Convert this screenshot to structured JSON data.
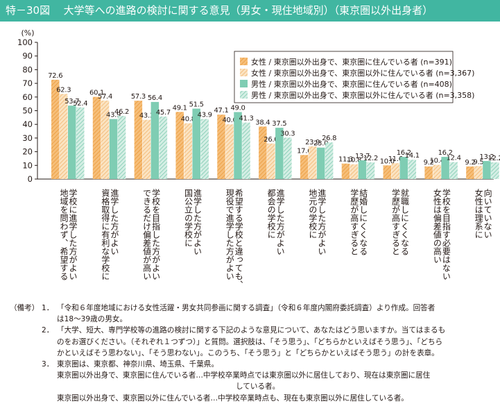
{
  "figure": {
    "number": "特－30図",
    "title": "大学等への進路の検討に関する意見（男女・現住地域別）（東京圏以外出身者）"
  },
  "chart_data": {
    "type": "bar",
    "ylabel": "(%)",
    "ylim": [
      0,
      100
    ],
    "yticks": [
      0,
      10,
      20,
      30,
      40,
      50,
      60,
      70,
      80,
      90,
      100
    ],
    "grid": false,
    "legend_position": "top-right",
    "categories": [
      "学校に進学した方がよい地域を問わず、希望する",
      "進学した方がよい資格取得に有利な学校に",
      "学校を目指した方がよいできるだけ偏差値が高い",
      "進学した方がよい国公立の学校に",
      "希望する学校と違っても、現役で進学した方がよい",
      "進学した方がよい都会の学校に",
      "進学した方がよい地元の学校に",
      "結婚しにくくなる学歴が高すぎると",
      "就職しにくくなる学歴が高すぎると",
      "学校を目指す必要はない女性は偏差値の高い",
      "向いていない女性は理系に"
    ],
    "category_lines": [
      [
        "学校に進学した方がよい",
        "地域を問わず、希望する"
      ],
      [
        "進学した方がよい",
        "資格取得に有利な学校に"
      ],
      [
        "学校を目指した方がよい",
        "できるだけ偏差値が高い"
      ],
      [
        "進学した方がよい",
        "国公立の学校に"
      ],
      [
        "希望する学校と違っても、",
        "現役で進学した方がよい"
      ],
      [
        "進学した方がよい",
        "都会の学校に"
      ],
      [
        "進学した方がよい",
        "地元の学校に"
      ],
      [
        "結婚しにくくなる",
        "学歴が高すぎると"
      ],
      [
        "就職しにくくなる",
        "学歴が高すぎると"
      ],
      [
        "学校を目指す必要はない",
        "女性は偏差値の高い"
      ],
      [
        "向いていない",
        "女性は理系に"
      ]
    ],
    "series": [
      {
        "name": "女性 / 東京圏以外出身で、東京圏に住んでいる者 (n=391)",
        "color": "#f6be79",
        "hatch": "#e8932e",
        "values": [
          72.6,
          60.1,
          57.3,
          49.1,
          47.1,
          38.4,
          17.6,
          11.3,
          10.0,
          9.2,
          9.2
        ]
      },
      {
        "name": "女性 / 東京圏以外出身で、東京圏以外に住んでいる者 (n=3,367)",
        "color": "#fbe3c1",
        "hatch": "#f0ac5e",
        "values": [
          62.3,
          57.4,
          43.3,
          40.8,
          40.0,
          26.0,
          23.9,
          10.8,
          11.6,
          10.4,
          9.5
        ]
      },
      {
        "name": "男性 / 東京圏以外出身で、東京圏に住んでいる者 (n=408)",
        "color": "#7fcdb3",
        "hatch": null,
        "values": [
          53.7,
          43.9,
          56.4,
          51.5,
          49.0,
          37.5,
          23.0,
          13.7,
          16.2,
          16.2,
          13.2
        ]
      },
      {
        "name": "男性 / 東京圏以外出身で、東京圏以外に住んでいる者 (n=3,358)",
        "color": "#d4eee4",
        "hatch": "#6cc3a6",
        "values": [
          52.4,
          46.2,
          45.7,
          43.9,
          41.3,
          30.3,
          26.8,
          12.2,
          14.1,
          12.4,
          12.2
        ]
      }
    ]
  },
  "notes": {
    "head": "（備考）",
    "items": [
      {
        "num": "1．",
        "lines": [
          "「令和６年度地域における女性活躍・男女共同参画に関する調査」（令和６年度内閣府委託調査）より作成。回答者",
          "は18～39歳の男女。"
        ]
      },
      {
        "num": "2．",
        "lines": [
          "「大学、短大、専門学校等の進路の検討に関する下記のような意見について、あなたはどう思いますか。当てはまるも",
          "のをお選びください。（それぞれ１つずつ）」と質問。選択肢は、「そう思う」、「どちらかといえばそう思う」、「どちら",
          "かといえばそう思わない」、「そう思わない」。このうち、「そう思う」と「どちらかといえばそう思う」の計を表章。"
        ]
      },
      {
        "num": "3．",
        "lines": [
          "東京圏は、東京都、神奈川県、埼玉県、千葉県。"
        ]
      }
    ],
    "extra": [
      "東京圏以外出身で、東京圏に住んでいる者…中学校卒業時点では東京圏以外に居住しており、現在は東京圏に居住",
      "している者。",
      "東京圏以外出身で、東京圏以外に住んでいる者…中学校卒業時点も、現在も東京圏以外に居住している者。"
    ]
  }
}
